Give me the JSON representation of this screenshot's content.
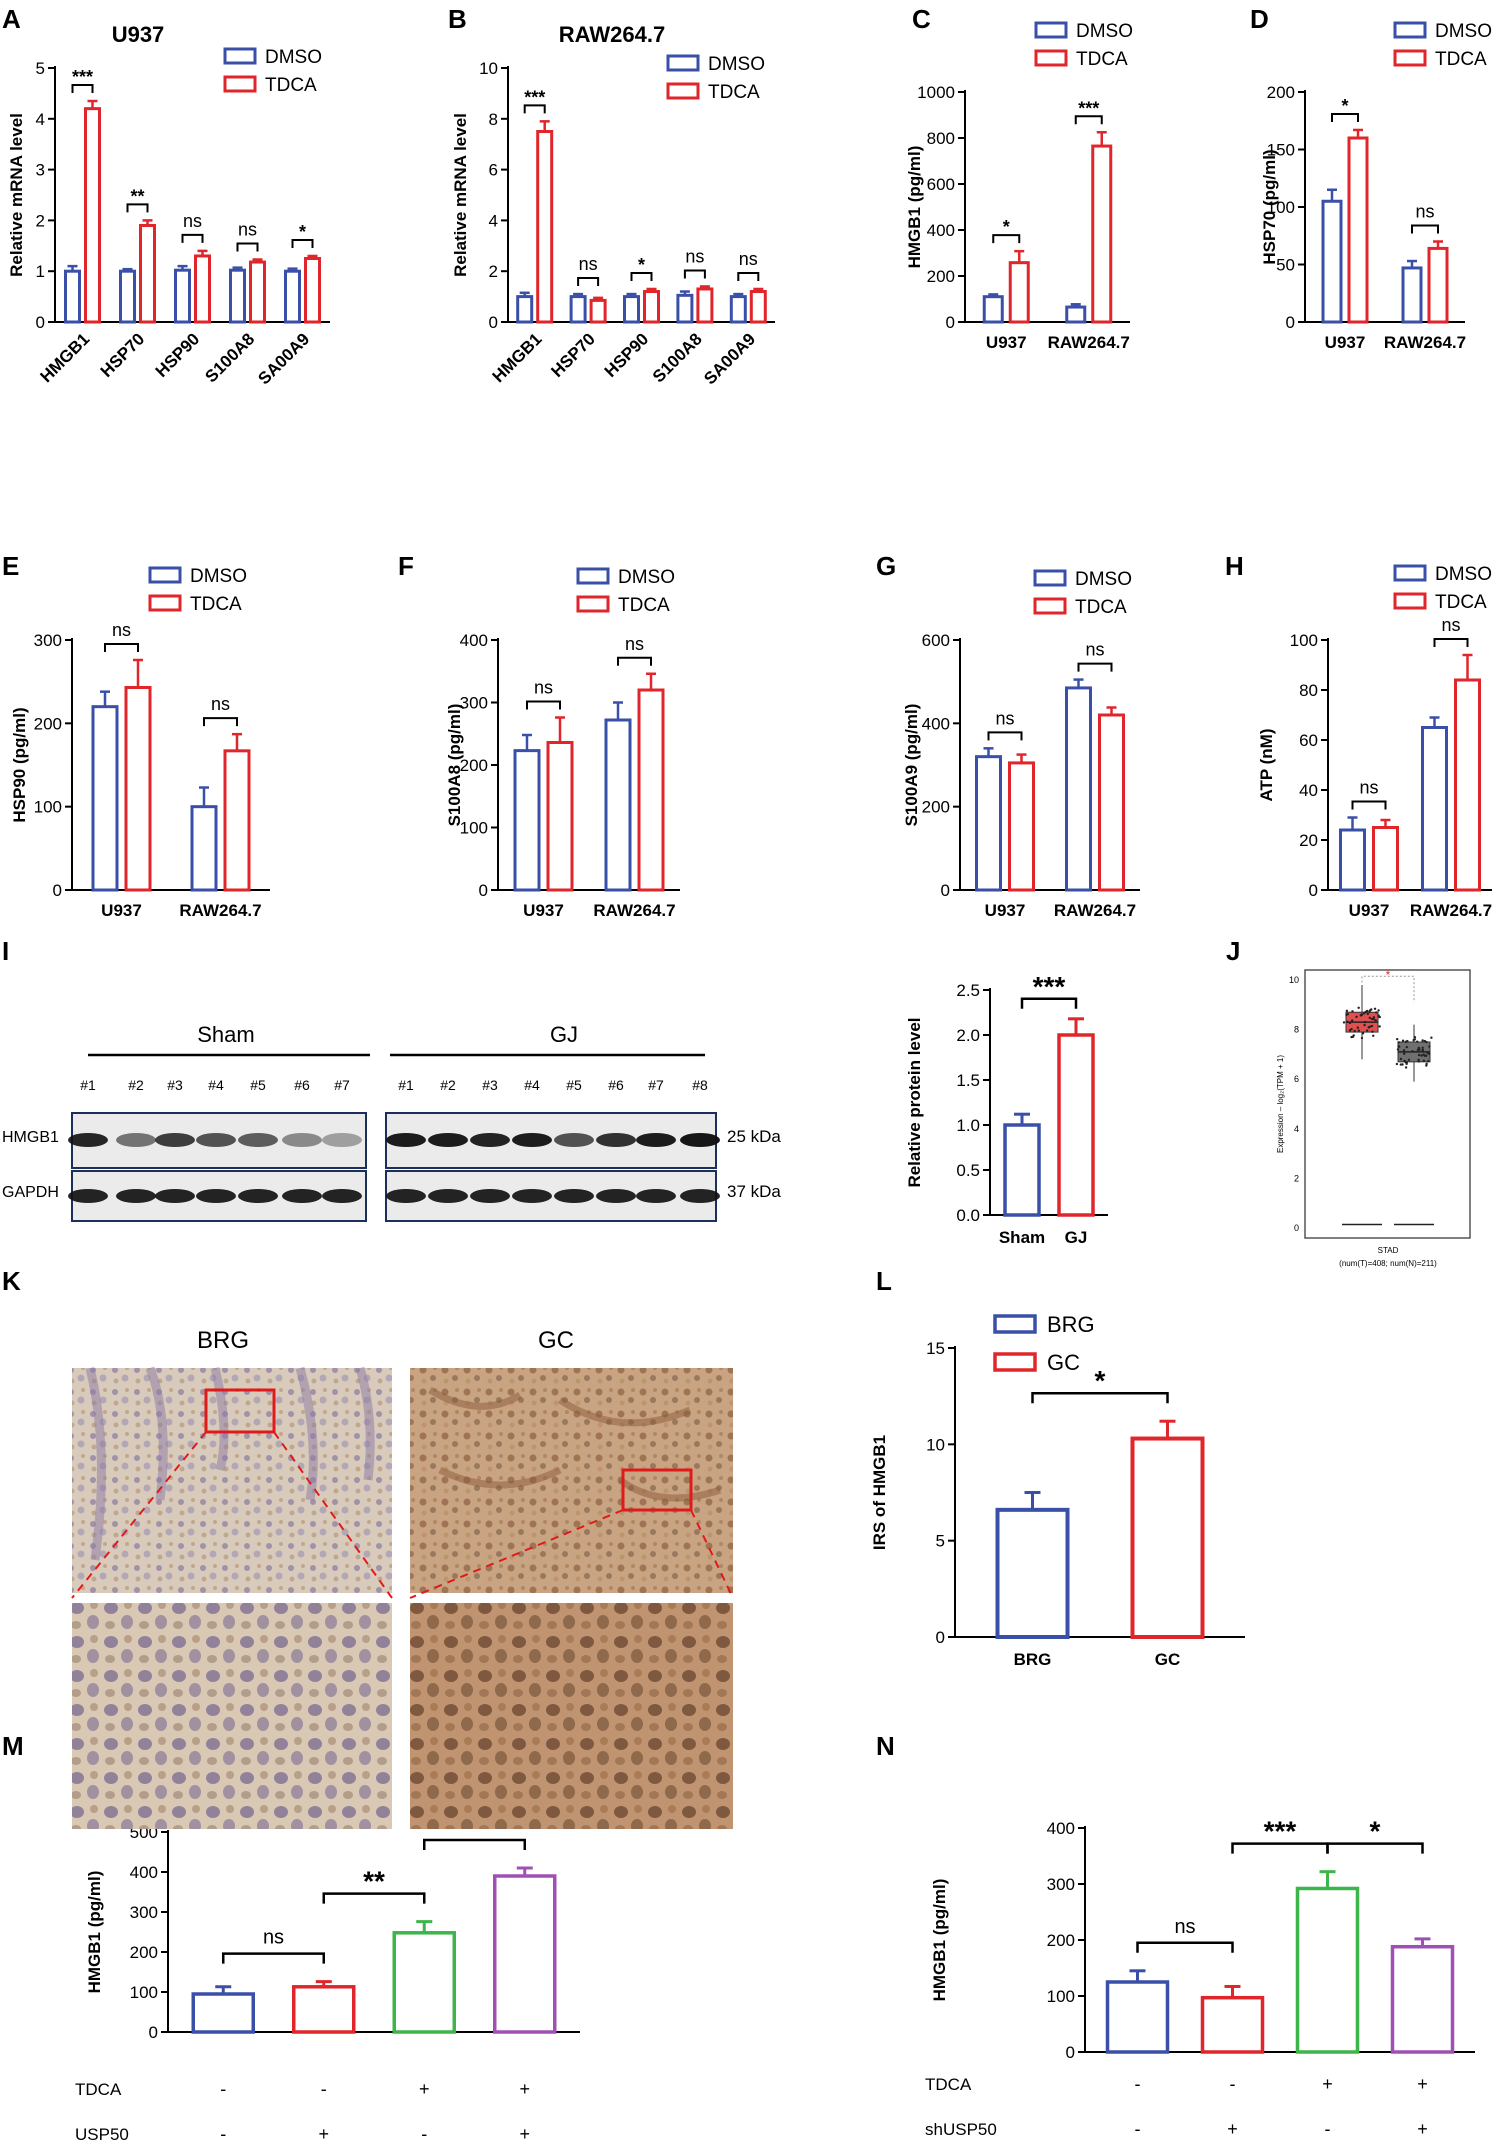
{
  "chart_data": [
    {
      "panel": "A",
      "type": "bar",
      "title": "U937",
      "ylabel": "Relative mRNA level",
      "categories": [
        "HMGB1",
        "HSP70",
        "HSP90",
        "S100A8",
        "SA00A9"
      ],
      "series": [
        {
          "name": "DMSO",
          "values": [
            1.0,
            1.0,
            1.02,
            1.02,
            1.0
          ],
          "errors": [
            0.1,
            0.04,
            0.08,
            0.05,
            0.05
          ]
        },
        {
          "name": "TDCA",
          "values": [
            4.2,
            1.9,
            1.3,
            1.18,
            1.25
          ],
          "errors": [
            0.15,
            0.1,
            0.1,
            0.05,
            0.05
          ]
        }
      ],
      "significance": [
        "***",
        "**",
        "ns",
        "ns",
        "*"
      ],
      "ylim": [
        0,
        5
      ],
      "yticks": [
        "0",
        "1",
        "2",
        "3",
        "4",
        "5"
      ],
      "legend": "top-right"
    },
    {
      "panel": "B",
      "type": "bar",
      "title": "RAW264.7",
      "ylabel": "Relative mRNA level",
      "categories": [
        "HMGB1",
        "HSP70",
        "HSP90",
        "S100A8",
        "SA00A9"
      ],
      "series": [
        {
          "name": "DMSO",
          "values": [
            1.0,
            1.0,
            1.0,
            1.05,
            1.0
          ],
          "errors": [
            0.15,
            0.1,
            0.1,
            0.15,
            0.1
          ]
        },
        {
          "name": "TDCA",
          "values": [
            7.5,
            0.85,
            1.2,
            1.3,
            1.2
          ],
          "errors": [
            0.4,
            0.1,
            0.1,
            0.1,
            0.1
          ]
        }
      ],
      "significance": [
        "***",
        "ns",
        "*",
        "ns",
        "ns"
      ],
      "ylim": [
        0,
        10
      ],
      "yticks": [
        "0",
        "2",
        "4",
        "6",
        "8",
        "10"
      ],
      "legend": "top-right"
    },
    {
      "panel": "C",
      "type": "bar",
      "ylabel": "HMGB1 (pg/ml)",
      "categories": [
        "U937",
        "RAW264.7"
      ],
      "series": [
        {
          "name": "DMSO",
          "values": [
            110,
            65
          ],
          "errors": [
            10,
            12
          ]
        },
        {
          "name": "TDCA",
          "values": [
            258,
            765
          ],
          "errors": [
            50,
            60
          ]
        }
      ],
      "significance": [
        "*",
        "***"
      ],
      "ylim": [
        0,
        1000
      ],
      "yticks": [
        "0",
        "200",
        "400",
        "600",
        "800",
        "1000"
      ],
      "legend": "top"
    },
    {
      "panel": "D",
      "type": "bar",
      "ylabel": "HSP70 (pg/ml)",
      "categories": [
        "U937",
        "RAW264.7"
      ],
      "series": [
        {
          "name": "DMSO",
          "values": [
            105,
            47
          ],
          "errors": [
            10,
            6
          ]
        },
        {
          "name": "TDCA",
          "values": [
            160,
            64
          ],
          "errors": [
            7,
            6
          ]
        }
      ],
      "significance": [
        "*",
        "ns"
      ],
      "ylim": [
        0,
        200
      ],
      "yticks": [
        "0",
        "50",
        "100",
        "150",
        "200"
      ],
      "legend": "top"
    },
    {
      "panel": "E",
      "type": "bar",
      "ylabel": "HSP90 (pg/ml)",
      "categories": [
        "U937",
        "RAW264.7"
      ],
      "series": [
        {
          "name": "DMSO",
          "values": [
            220,
            100
          ],
          "errors": [
            18,
            23
          ]
        },
        {
          "name": "TDCA",
          "values": [
            243,
            167
          ],
          "errors": [
            33,
            20
          ]
        }
      ],
      "significance": [
        "ns",
        "ns"
      ],
      "ylim": [
        0,
        300
      ],
      "yticks": [
        "0",
        "100",
        "200",
        "300"
      ],
      "legend": "top"
    },
    {
      "panel": "F",
      "type": "bar",
      "ylabel": "S100A8 (pg/ml)",
      "categories": [
        "U937",
        "RAW264.7"
      ],
      "series": [
        {
          "name": "DMSO",
          "values": [
            223,
            272
          ],
          "errors": [
            25,
            28
          ]
        },
        {
          "name": "TDCA",
          "values": [
            236,
            320
          ],
          "errors": [
            40,
            26
          ]
        }
      ],
      "significance": [
        "ns",
        "ns"
      ],
      "ylim": [
        0,
        400
      ],
      "yticks": [
        "0",
        "100",
        "200",
        "300",
        "400"
      ],
      "legend": "top"
    },
    {
      "panel": "G",
      "type": "bar",
      "ylabel": "S100A9 (pg/ml)",
      "categories": [
        "U937",
        "RAW264.7"
      ],
      "series": [
        {
          "name": "DMSO",
          "values": [
            320,
            485
          ],
          "errors": [
            20,
            20
          ]
        },
        {
          "name": "TDCA",
          "values": [
            305,
            420
          ],
          "errors": [
            20,
            18
          ]
        }
      ],
      "significance": [
        "ns",
        "ns"
      ],
      "ylim": [
        0,
        600
      ],
      "yticks": [
        "0",
        "200",
        "400",
        "600"
      ],
      "legend": "top"
    },
    {
      "panel": "H",
      "type": "bar",
      "ylabel": "ATP (nM)",
      "categories": [
        "U937",
        "RAW264.7"
      ],
      "series": [
        {
          "name": "DMSO",
          "values": [
            24,
            65
          ],
          "errors": [
            5,
            4
          ]
        },
        {
          "name": "TDCA",
          "values": [
            25,
            84
          ],
          "errors": [
            3,
            10
          ]
        }
      ],
      "significance": [
        "ns",
        "ns"
      ],
      "ylim": [
        0,
        100
      ],
      "yticks": [
        "0",
        "20",
        "40",
        "60",
        "80",
        "100"
      ],
      "legend": "top"
    },
    {
      "panel": "I-right",
      "type": "bar",
      "ylabel": "Relative protein level",
      "categories": [
        "Sham",
        "GJ"
      ],
      "series": [
        {
          "values": [
            1.0,
            2.0
          ],
          "errors": [
            0.12,
            0.18
          ],
          "colors": [
            "#3a50a8",
            "#e0262a"
          ]
        }
      ],
      "significance": [
        "***"
      ],
      "ylim": [
        0.0,
        2.5
      ],
      "yticks": [
        "0.0",
        "0.5",
        "1.0",
        "1.5",
        "2.0",
        "2.5"
      ]
    },
    {
      "panel": "J",
      "type": "box",
      "ylabel": "Expression – log₂(TPM + 1)",
      "xlabel": "STAD",
      "subtitle": "(num(T)=408; num(N)=211)",
      "boxes": [
        {
          "q1": 7.9,
          "median": 8.3,
          "q3": 8.7,
          "min": 6.8,
          "max": 9.8,
          "color": "#e05050"
        },
        {
          "q1": 6.7,
          "median": 7.1,
          "q3": 7.5,
          "min": 5.9,
          "max": 8.2,
          "color": "#707070"
        }
      ],
      "significance": "*",
      "ylim": [
        0,
        10
      ],
      "yticks": [
        "0",
        "2",
        "4",
        "6",
        "8",
        "10"
      ]
    },
    {
      "panel": "L",
      "type": "bar",
      "ylabel": "IRS of HMGB1",
      "categories": [
        "BRG",
        "GC"
      ],
      "series": [
        {
          "values": [
            6.6,
            10.3
          ],
          "errors": [
            0.9,
            0.9
          ],
          "colors": [
            "#3a50a8",
            "#e0262a"
          ]
        }
      ],
      "legend_entries": [
        {
          "name": "BRG",
          "color": "#3a50a8"
        },
        {
          "name": "GC",
          "color": "#e0262a"
        }
      ],
      "significance": [
        "*"
      ],
      "ylim": [
        0,
        15
      ],
      "yticks": [
        "0",
        "5",
        "10",
        "15"
      ],
      "legend": "top-left"
    },
    {
      "panel": "M",
      "type": "bar",
      "ylabel": "HMGB1 (pg/ml)",
      "series": [
        {
          "values": [
            95,
            113,
            248,
            390
          ],
          "errors": [
            18,
            13,
            28,
            20
          ],
          "colors": [
            "#3a50a8",
            "#e0262a",
            "#3db54a",
            "#a050b5"
          ]
        }
      ],
      "conditions": [
        {
          "label": "TDCA",
          "signs": [
            "-",
            "-",
            "+",
            "+"
          ]
        },
        {
          "label": "USP50",
          "signs": [
            "-",
            "+",
            "-",
            "+"
          ]
        }
      ],
      "significance": [
        {
          "label": "ns",
          "from": 0,
          "to": 1
        },
        {
          "label": "**",
          "from": 1,
          "to": 2
        },
        {
          "label": "**",
          "from": 2,
          "to": 3
        }
      ],
      "ylim": [
        0,
        500
      ],
      "yticks": [
        "0",
        "100",
        "200",
        "300",
        "400",
        "500"
      ]
    },
    {
      "panel": "N",
      "type": "bar",
      "ylabel": "HMGB1 (pg/ml)",
      "series": [
        {
          "values": [
            125,
            97,
            292,
            188
          ],
          "errors": [
            20,
            20,
            30,
            14
          ],
          "colors": [
            "#3a50a8",
            "#e0262a",
            "#3db54a",
            "#a050b5"
          ]
        }
      ],
      "conditions": [
        {
          "label": "TDCA",
          "signs": [
            "-",
            "-",
            "+",
            "+"
          ]
        },
        {
          "label": "shUSP50",
          "signs": [
            "-",
            "+",
            "-",
            "+"
          ]
        }
      ],
      "significance": [
        {
          "label": "ns",
          "from": 0,
          "to": 1
        },
        {
          "label": "***",
          "from": 1,
          "to": 2
        },
        {
          "label": "*",
          "from": 2,
          "to": 3
        }
      ],
      "ylim": [
        0,
        400
      ],
      "yticks": [
        "0",
        "100",
        "200",
        "300",
        "400"
      ]
    }
  ],
  "colors": {
    "dmso": "#3a50a8",
    "tdca": "#e0262a",
    "green": "#3db54a",
    "purple": "#a050b5"
  },
  "panel_labels": [
    "A",
    "B",
    "C",
    "D",
    "E",
    "F",
    "G",
    "H",
    "I",
    "J",
    "K",
    "L",
    "M",
    "N"
  ],
  "western": {
    "groups": [
      {
        "label": "Sham",
        "lanes": [
          "#1",
          "#2",
          "#3",
          "#4",
          "#5",
          "#6",
          "#7"
        ]
      },
      {
        "label": "GJ",
        "lanes": [
          "#1",
          "#2",
          "#3",
          "#4",
          "#5",
          "#6",
          "#7",
          "#8"
        ]
      }
    ],
    "rows": [
      {
        "label": "HMGB1",
        "size": "25 kDa"
      },
      {
        "label": "GAPDH",
        "size": "37 kDa"
      }
    ]
  },
  "histology": {
    "labels": [
      "BRG",
      "GC"
    ]
  }
}
